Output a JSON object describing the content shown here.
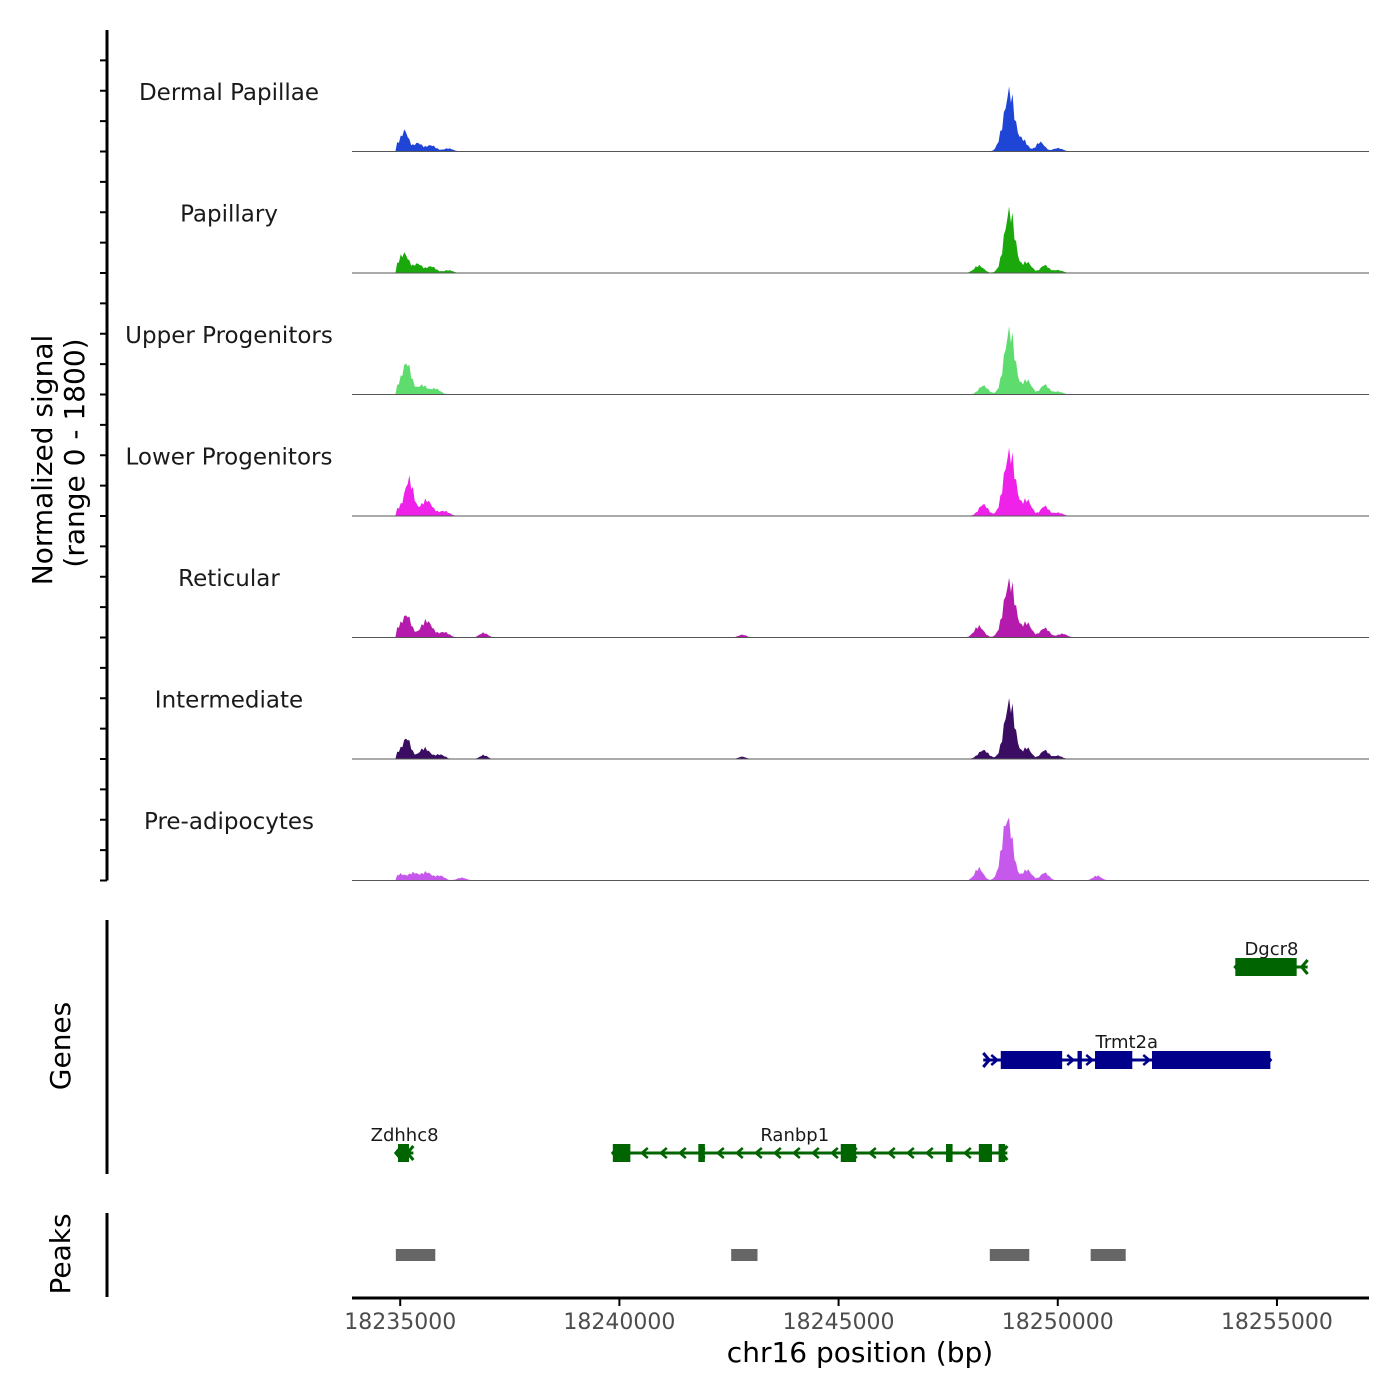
{
  "chart_data": {
    "type": "area",
    "chromosome": "chr16",
    "xlabel": "chr16 position (bp)",
    "ylabel_line1": "Normalized signal",
    "ylabel_line2": "(range 0 - 1800)",
    "xlim": [
      18233900,
      18257100
    ],
    "ylim": [
      0,
      1800
    ],
    "x_ticks": [
      18235000,
      18240000,
      18245000,
      18250000,
      18255000
    ],
    "x_tick_labels": [
      "18235000",
      "18240000",
      "18245000",
      "18250000",
      "18255000"
    ],
    "tracks": [
      {
        "name": "Dermal Papillae",
        "color": "#1f45d6",
        "peaks": [
          {
            "center": 18235100,
            "width": 90,
            "height": 560
          },
          {
            "center": 18234900,
            "width": 60,
            "height": 150
          },
          {
            "center": 18235400,
            "width": 90,
            "height": 220
          },
          {
            "center": 18235700,
            "width": 110,
            "height": 160
          },
          {
            "center": 18236100,
            "width": 100,
            "height": 70
          },
          {
            "center": 18248700,
            "width": 80,
            "height": 220
          },
          {
            "center": 18248900,
            "width": 110,
            "height": 1650
          },
          {
            "center": 18249200,
            "width": 100,
            "height": 300
          },
          {
            "center": 18249600,
            "width": 90,
            "height": 250
          },
          {
            "center": 18250000,
            "width": 100,
            "height": 80
          }
        ]
      },
      {
        "name": "Papillary",
        "color": "#1aa80c",
        "peaks": [
          {
            "center": 18235100,
            "width": 100,
            "height": 500
          },
          {
            "center": 18234950,
            "width": 80,
            "height": 130
          },
          {
            "center": 18235400,
            "width": 90,
            "height": 240
          },
          {
            "center": 18235700,
            "width": 110,
            "height": 170
          },
          {
            "center": 18236100,
            "width": 100,
            "height": 60
          },
          {
            "center": 18248200,
            "width": 100,
            "height": 190
          },
          {
            "center": 18248900,
            "width": 120,
            "height": 1700
          },
          {
            "center": 18249300,
            "width": 100,
            "height": 280
          },
          {
            "center": 18249700,
            "width": 90,
            "height": 200
          },
          {
            "center": 18250000,
            "width": 100,
            "height": 70
          }
        ]
      },
      {
        "name": "Upper Progenitors",
        "color": "#5edd6e",
        "peaks": [
          {
            "center": 18235150,
            "width": 100,
            "height": 860
          },
          {
            "center": 18234950,
            "width": 80,
            "height": 160
          },
          {
            "center": 18235500,
            "width": 110,
            "height": 240
          },
          {
            "center": 18235800,
            "width": 100,
            "height": 150
          },
          {
            "center": 18248300,
            "width": 100,
            "height": 230
          },
          {
            "center": 18248900,
            "width": 120,
            "height": 1750
          },
          {
            "center": 18249300,
            "width": 100,
            "height": 380
          },
          {
            "center": 18249700,
            "width": 90,
            "height": 260
          },
          {
            "center": 18250000,
            "width": 100,
            "height": 70
          }
        ]
      },
      {
        "name": "Lower Progenitors",
        "color": "#ee22e8",
        "peaks": [
          {
            "center": 18235200,
            "width": 100,
            "height": 1000
          },
          {
            "center": 18234950,
            "width": 80,
            "height": 170
          },
          {
            "center": 18235600,
            "width": 130,
            "height": 420
          },
          {
            "center": 18236000,
            "width": 110,
            "height": 120
          },
          {
            "center": 18248300,
            "width": 100,
            "height": 310
          },
          {
            "center": 18248900,
            "width": 130,
            "height": 1750
          },
          {
            "center": 18249300,
            "width": 100,
            "height": 420
          },
          {
            "center": 18249700,
            "width": 90,
            "height": 260
          },
          {
            "center": 18250000,
            "width": 100,
            "height": 80
          }
        ]
      },
      {
        "name": "Reticular",
        "color": "#b41aac",
        "peaks": [
          {
            "center": 18235150,
            "width": 100,
            "height": 600
          },
          {
            "center": 18234950,
            "width": 80,
            "height": 200
          },
          {
            "center": 18235600,
            "width": 130,
            "height": 450
          },
          {
            "center": 18236000,
            "width": 110,
            "height": 130
          },
          {
            "center": 18236900,
            "width": 90,
            "height": 110
          },
          {
            "center": 18242800,
            "width": 90,
            "height": 60
          },
          {
            "center": 18248200,
            "width": 100,
            "height": 300
          },
          {
            "center": 18248900,
            "width": 130,
            "height": 1530
          },
          {
            "center": 18249300,
            "width": 100,
            "height": 380
          },
          {
            "center": 18249700,
            "width": 100,
            "height": 250
          },
          {
            "center": 18250100,
            "width": 100,
            "height": 90
          }
        ]
      },
      {
        "name": "Intermediate",
        "color": "#3a0d62",
        "peaks": [
          {
            "center": 18235150,
            "width": 90,
            "height": 560
          },
          {
            "center": 18234950,
            "width": 80,
            "height": 150
          },
          {
            "center": 18235550,
            "width": 120,
            "height": 280
          },
          {
            "center": 18235900,
            "width": 100,
            "height": 110
          },
          {
            "center": 18236900,
            "width": 80,
            "height": 90
          },
          {
            "center": 18242800,
            "width": 80,
            "height": 50
          },
          {
            "center": 18248300,
            "width": 110,
            "height": 230
          },
          {
            "center": 18248900,
            "width": 120,
            "height": 1560
          },
          {
            "center": 18249300,
            "width": 90,
            "height": 290
          },
          {
            "center": 18249700,
            "width": 90,
            "height": 230
          },
          {
            "center": 18250000,
            "width": 90,
            "height": 80
          }
        ]
      },
      {
        "name": "Pre-adipocytes",
        "color": "#c659ec",
        "peaks": [
          {
            "center": 18235000,
            "width": 100,
            "height": 160
          },
          {
            "center": 18235300,
            "width": 110,
            "height": 200
          },
          {
            "center": 18235600,
            "width": 110,
            "height": 210
          },
          {
            "center": 18235900,
            "width": 100,
            "height": 120
          },
          {
            "center": 18236400,
            "width": 100,
            "height": 60
          },
          {
            "center": 18248200,
            "width": 90,
            "height": 330
          },
          {
            "center": 18248850,
            "width": 120,
            "height": 1700
          },
          {
            "center": 18249300,
            "width": 100,
            "height": 280
          },
          {
            "center": 18249700,
            "width": 90,
            "height": 200
          },
          {
            "center": 18250900,
            "width": 90,
            "height": 120
          }
        ]
      }
    ],
    "genes": [
      {
        "name": "Dgcr8",
        "strand": "-",
        "color": "#006400",
        "row": 0,
        "start": 18254050,
        "end": 18255700,
        "exons": [
          [
            18254050,
            18255450
          ]
        ]
      },
      {
        "name": "Trmt2a",
        "strand": "+",
        "color": "#00008b",
        "row": 1,
        "start": 18248300,
        "end": 18254850,
        "exons": [
          [
            18248700,
            18250100
          ],
          [
            18250450,
            18250550
          ],
          [
            18250850,
            18251700
          ],
          [
            18252150,
            18254850
          ]
        ]
      },
      {
        "name": "Zdhhc8",
        "strand": "-",
        "color": "#006400",
        "row": 2,
        "start": 18234900,
        "end": 18235300,
        "exons": [
          [
            18234950,
            18235200
          ]
        ]
      },
      {
        "name": "Ranbp1",
        "strand": "-",
        "color": "#006400",
        "row": 2,
        "start": 18239850,
        "end": 18248850,
        "exons": [
          [
            18239850,
            18240250
          ],
          [
            18241800,
            18241950
          ],
          [
            18245050,
            18245400
          ],
          [
            18247450,
            18247600
          ],
          [
            18248200,
            18248500
          ],
          [
            18248650,
            18248800
          ]
        ]
      }
    ],
    "peaks": [
      [
        18234900,
        18235800
      ],
      [
        18242550,
        18243150
      ],
      [
        18248450,
        18249350
      ],
      [
        18250750,
        18251550
      ]
    ],
    "panel_labels": {
      "genes": "Genes",
      "peaks": "Peaks"
    }
  }
}
